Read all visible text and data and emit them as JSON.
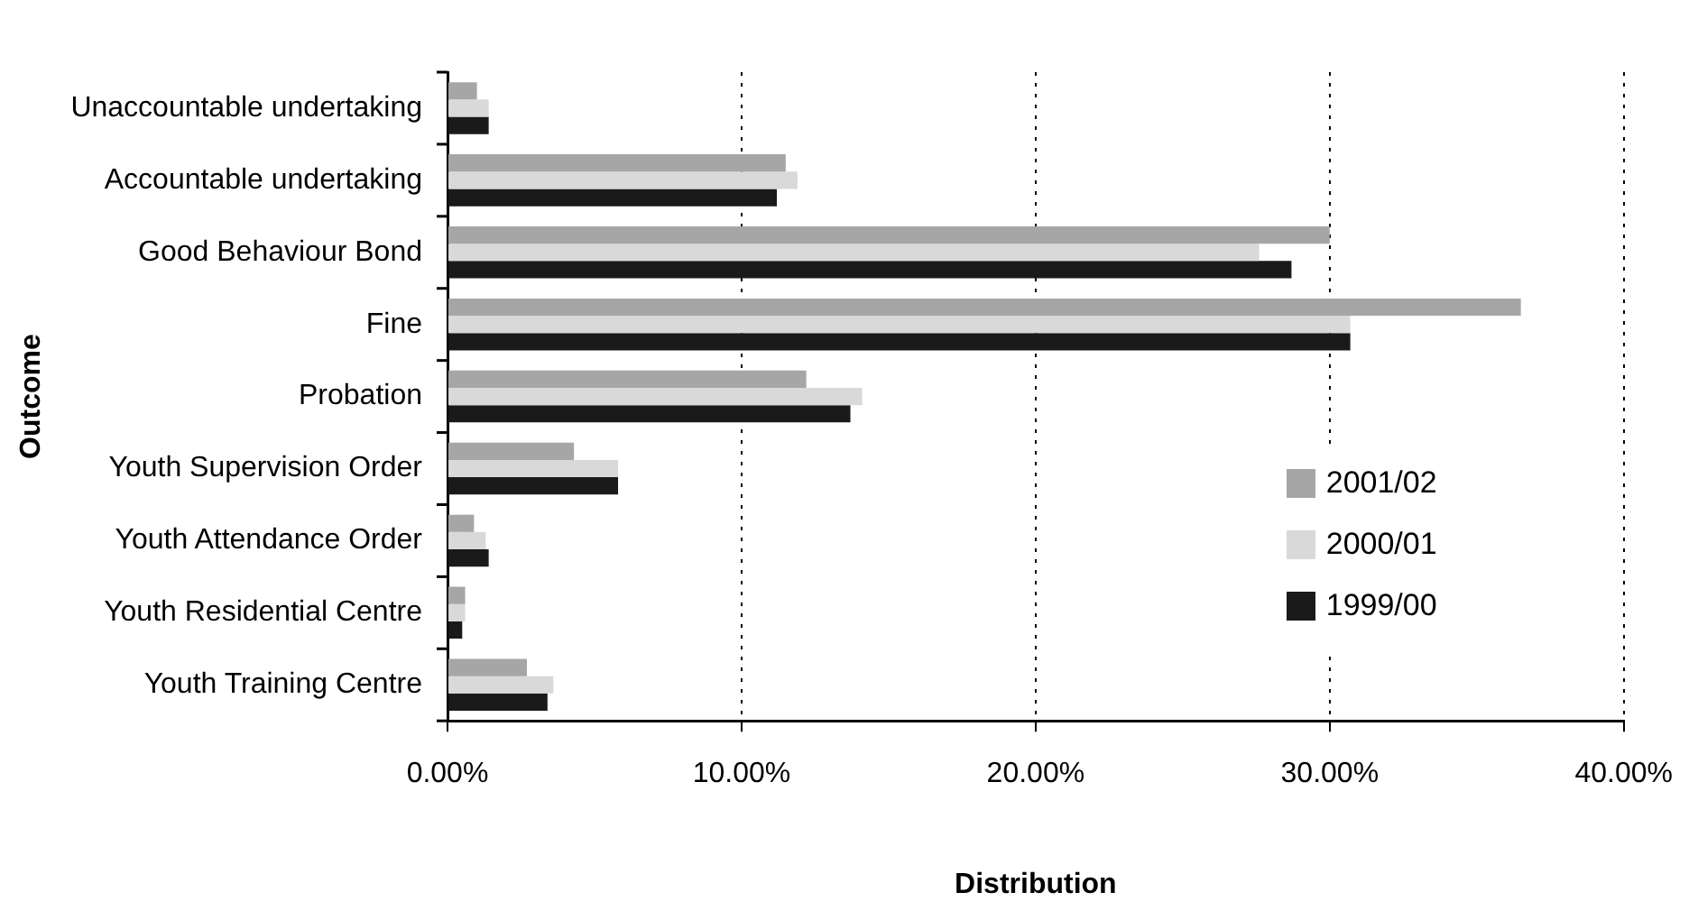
{
  "chart_data": {
    "type": "bar",
    "orientation": "horizontal",
    "xlabel": "Distribution",
    "ylabel": "Outcome",
    "categories": [
      "Unaccountable undertaking",
      "Accountable undertaking",
      "Good Behaviour Bond",
      "Fine",
      "Probation",
      "Youth Supervision Order",
      "Youth Attendance Order",
      "Youth Residential Centre",
      "Youth Training Centre"
    ],
    "series": [
      {
        "name": "2001/02",
        "color": "#a6a6a6",
        "values": [
          1.0,
          11.5,
          30.0,
          36.5,
          12.2,
          4.3,
          0.9,
          0.6,
          2.7
        ]
      },
      {
        "name": "2000/01",
        "color": "#d9d9d9",
        "values": [
          1.4,
          11.9,
          27.6,
          30.7,
          14.1,
          5.8,
          1.3,
          0.6,
          3.6
        ]
      },
      {
        "name": "1999/00",
        "color": "#1a1a1a",
        "values": [
          1.4,
          11.2,
          28.7,
          30.7,
          13.7,
          5.8,
          1.4,
          0.5,
          3.4
        ]
      }
    ],
    "xlim": [
      0,
      40
    ],
    "xticks": [
      {
        "value": 0,
        "label": "0.00%"
      },
      {
        "value": 10,
        "label": "10.00%"
      },
      {
        "value": 20,
        "label": "20.00%"
      },
      {
        "value": 30,
        "label": "30.00%"
      },
      {
        "value": 40,
        "label": "40.00%"
      }
    ],
    "grid": "x",
    "legend": "bottom right"
  }
}
